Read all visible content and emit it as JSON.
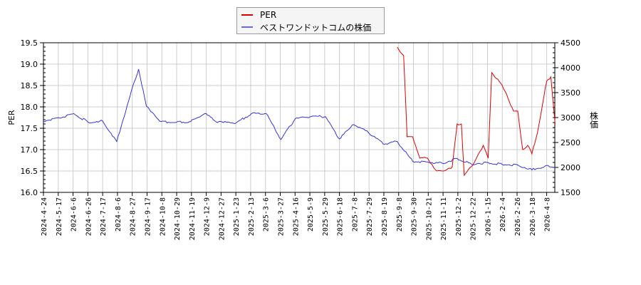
{
  "legend": {
    "items": [
      {
        "label": "PER",
        "color": "#dd0000"
      },
      {
        "label": "ベストワンドットコムの株価",
        "color": "#3333dd"
      }
    ]
  },
  "axes": {
    "left_label": "PER",
    "right_label": "株価"
  },
  "chart_data": {
    "type": "line",
    "title": "",
    "xlabel": "",
    "ylabel": "PER",
    "ylabel_right": "株価",
    "ylim": [
      16.0,
      19.5
    ],
    "ylim_right": [
      1500,
      4500
    ],
    "yticks": [
      "16.0",
      "16.5",
      "17.0",
      "17.5",
      "18.0",
      "18.5",
      "19.0",
      "19.5"
    ],
    "yticks_right": [
      "1500",
      "2000",
      "2500",
      "3000",
      "3500",
      "4000",
      "4500"
    ],
    "grid": true,
    "legend_position": "top-center",
    "x_tick_labels": [
      "2024-4-24",
      "2024-5-17",
      "2024-6-6",
      "2024-6-26",
      "2024-7-17",
      "2024-8-6",
      "2024-8-27",
      "2024-9-17",
      "2024-10-8",
      "2024-10-29",
      "2024-11-19",
      "2024-12-9",
      "2024-12-27",
      "2025-1-23",
      "2025-2-13",
      "2025-3-6",
      "2025-3-27",
      "2025-4-16",
      "2025-5-9",
      "2025-5-29",
      "2025-6-18",
      "2025-7-8",
      "2025-7-29",
      "2025-8-19",
      "2025-9-8",
      "2025-9-30",
      "2025-10-21",
      "2025-11-11",
      "2025-12-2",
      "2025-12-22",
      "2026-1-15",
      "2026-2-4",
      "2026-2-26",
      "2026-3-18",
      "2026-4-8"
    ],
    "series": [
      {
        "name": "ベストワンドットコムの株価",
        "axis": "right",
        "color": "#3333dd",
        "x": [
          "2024-4-24",
          "2024-5-17",
          "2024-6-6",
          "2024-6-26",
          "2024-7-17",
          "2024-8-6",
          "2024-8-27",
          "2024-9-6",
          "2024-9-17",
          "2024-10-8",
          "2024-10-29",
          "2024-11-19",
          "2024-12-9",
          "2024-12-27",
          "2025-1-23",
          "2025-2-13",
          "2025-3-6",
          "2025-3-27",
          "2025-4-16",
          "2025-5-9",
          "2025-5-29",
          "2025-6-18",
          "2025-7-8",
          "2025-7-29",
          "2025-8-19",
          "2025-9-8",
          "2025-9-30",
          "2025-10-21",
          "2025-11-11",
          "2025-12-2",
          "2025-12-22",
          "2026-1-15",
          "2026-2-4",
          "2026-2-26",
          "2026-3-18",
          "2026-4-8",
          "2026-4-20"
        ],
        "values": [
          2930,
          2990,
          3080,
          2910,
          2930,
          2520,
          3550,
          3970,
          3230,
          2920,
          2900,
          2920,
          3080,
          2900,
          2900,
          3080,
          3080,
          2560,
          2970,
          3020,
          3020,
          2570,
          2860,
          2700,
          2470,
          2520,
          2120,
          2110,
          2080,
          2180,
          2070,
          2100,
          2060,
          2050,
          1950,
          2040,
          2000
        ]
      },
      {
        "name": "PER",
        "axis": "left",
        "color": "#dd0000",
        "x": [
          "2025-9-8",
          "2025-9-17",
          "2025-9-22",
          "2025-9-30",
          "2025-10-10",
          "2025-10-21",
          "2025-11-3",
          "2025-11-11",
          "2025-11-25",
          "2025-12-2",
          "2025-12-8",
          "2025-12-12",
          "2025-12-22",
          "2026-1-8",
          "2026-1-15",
          "2026-1-20",
          "2026-2-4",
          "2026-2-10",
          "2026-2-20",
          "2026-2-26",
          "2026-3-5",
          "2026-3-12",
          "2026-3-18",
          "2026-3-26",
          "2026-4-8",
          "2026-4-14",
          "2026-4-20"
        ],
        "values": [
          19.4,
          19.2,
          17.3,
          17.3,
          16.8,
          16.8,
          16.5,
          16.5,
          16.6,
          17.6,
          17.6,
          16.4,
          16.6,
          17.1,
          16.8,
          18.8,
          18.5,
          18.3,
          17.9,
          17.9,
          17.0,
          17.1,
          16.9,
          17.4,
          18.6,
          18.7,
          17.6
        ]
      }
    ]
  }
}
